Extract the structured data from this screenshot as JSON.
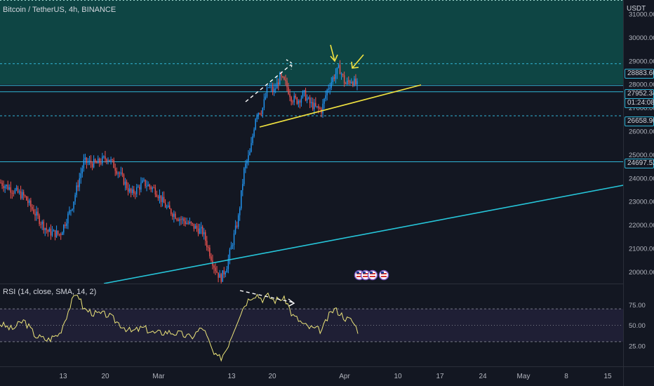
{
  "header": {
    "title": "Bitcoin / TetherUS, 4h, BINANCE"
  },
  "rsi_header": {
    "title": "RSI (14, close, SMA, 14, 2)"
  },
  "price_scale": {
    "currency": "USDT"
  },
  "badges": {
    "resistance": "28883.60",
    "last_price": "27952.34",
    "countdown": "01:24:08",
    "support": "26658.90",
    "level_low": "24697.52"
  },
  "colors": {
    "background": "#131722",
    "bull": "#2196f3",
    "bear": "#ef5350",
    "rsi_line": "#ede57a",
    "support_zone": "#0e4d4a",
    "level_line": "#30b5d6",
    "trendline_yellow": "#f0e240",
    "trendline_cyan": "#26c6da"
  },
  "chart_data": {
    "type": "candlestick",
    "title": "Bitcoin / TetherUS, 4h, BINANCE",
    "x_ticks": [
      "13",
      "20",
      "Mar",
      "13",
      "20",
      "Apr",
      "10",
      "17",
      "24",
      "May",
      "8",
      "15"
    ],
    "y_ticks": [
      31000,
      30000,
      29000,
      28000,
      27000,
      26000,
      25000,
      24000,
      23000,
      22000,
      21000,
      20000
    ],
    "ylim": [
      19500,
      31600
    ],
    "price_path": [
      [
        0,
        23800
      ],
      [
        2,
        23500
      ],
      [
        4,
        23200
      ],
      [
        6,
        22400
      ],
      [
        8,
        21700
      ],
      [
        10,
        21600
      ],
      [
        12,
        22800
      ],
      [
        14,
        24700
      ],
      [
        16,
        24600
      ],
      [
        18,
        24900
      ],
      [
        20,
        24200
      ],
      [
        22,
        23300
      ],
      [
        24,
        23800
      ],
      [
        26,
        23500
      ],
      [
        28,
        22700
      ],
      [
        30,
        22300
      ],
      [
        32,
        22000
      ],
      [
        34,
        21700
      ],
      [
        36,
        20200
      ],
      [
        37,
        19700
      ],
      [
        38,
        20200
      ],
      [
        40,
        22300
      ],
      [
        41,
        24400
      ],
      [
        42,
        25100
      ],
      [
        43,
        26800
      ],
      [
        44,
        26900
      ],
      [
        45,
        27900
      ],
      [
        46,
        27700
      ],
      [
        47,
        28300
      ],
      [
        48,
        28000
      ],
      [
        49,
        27400
      ],
      [
        50,
        27300
      ],
      [
        51,
        27600
      ],
      [
        52,
        27200
      ],
      [
        53,
        27000
      ],
      [
        54,
        26900
      ],
      [
        55,
        27800
      ],
      [
        56,
        28300
      ],
      [
        57,
        28700
      ],
      [
        58,
        28000
      ],
      [
        59,
        28200
      ],
      [
        60,
        27950
      ]
    ],
    "horizontal_levels": [
      28883.6,
      27952.34,
      26658.9,
      24697.52
    ],
    "support_zone": [
      28000,
      31600
    ],
    "rsi": {
      "label": "RSI (14, close, SMA, 14, 2)",
      "y_ticks": [
        75,
        50,
        25
      ],
      "ylim": [
        0,
        100
      ],
      "values": [
        [
          0,
          52
        ],
        [
          2,
          45
        ],
        [
          4,
          56
        ],
        [
          6,
          37
        ],
        [
          8,
          32
        ],
        [
          10,
          40
        ],
        [
          12,
          78
        ],
        [
          13,
          90
        ],
        [
          14,
          70
        ],
        [
          16,
          64
        ],
        [
          18,
          63
        ],
        [
          20,
          52
        ],
        [
          22,
          42
        ],
        [
          24,
          47
        ],
        [
          26,
          40
        ],
        [
          28,
          42
        ],
        [
          30,
          40
        ],
        [
          32,
          35
        ],
        [
          34,
          48
        ],
        [
          36,
          12
        ],
        [
          37,
          10
        ],
        [
          38,
          22
        ],
        [
          40,
          60
        ],
        [
          41,
          75
        ],
        [
          42,
          85
        ],
        [
          43,
          88
        ],
        [
          44,
          82
        ],
        [
          45,
          86
        ],
        [
          46,
          80
        ],
        [
          47,
          83
        ],
        [
          48,
          80
        ],
        [
          49,
          62
        ],
        [
          50,
          57
        ],
        [
          51,
          50
        ],
        [
          52,
          47
        ],
        [
          53,
          45
        ],
        [
          54,
          44
        ],
        [
          55,
          60
        ],
        [
          56,
          70
        ],
        [
          57,
          65
        ],
        [
          58,
          58
        ],
        [
          59,
          56
        ],
        [
          60,
          44
        ]
      ]
    }
  }
}
